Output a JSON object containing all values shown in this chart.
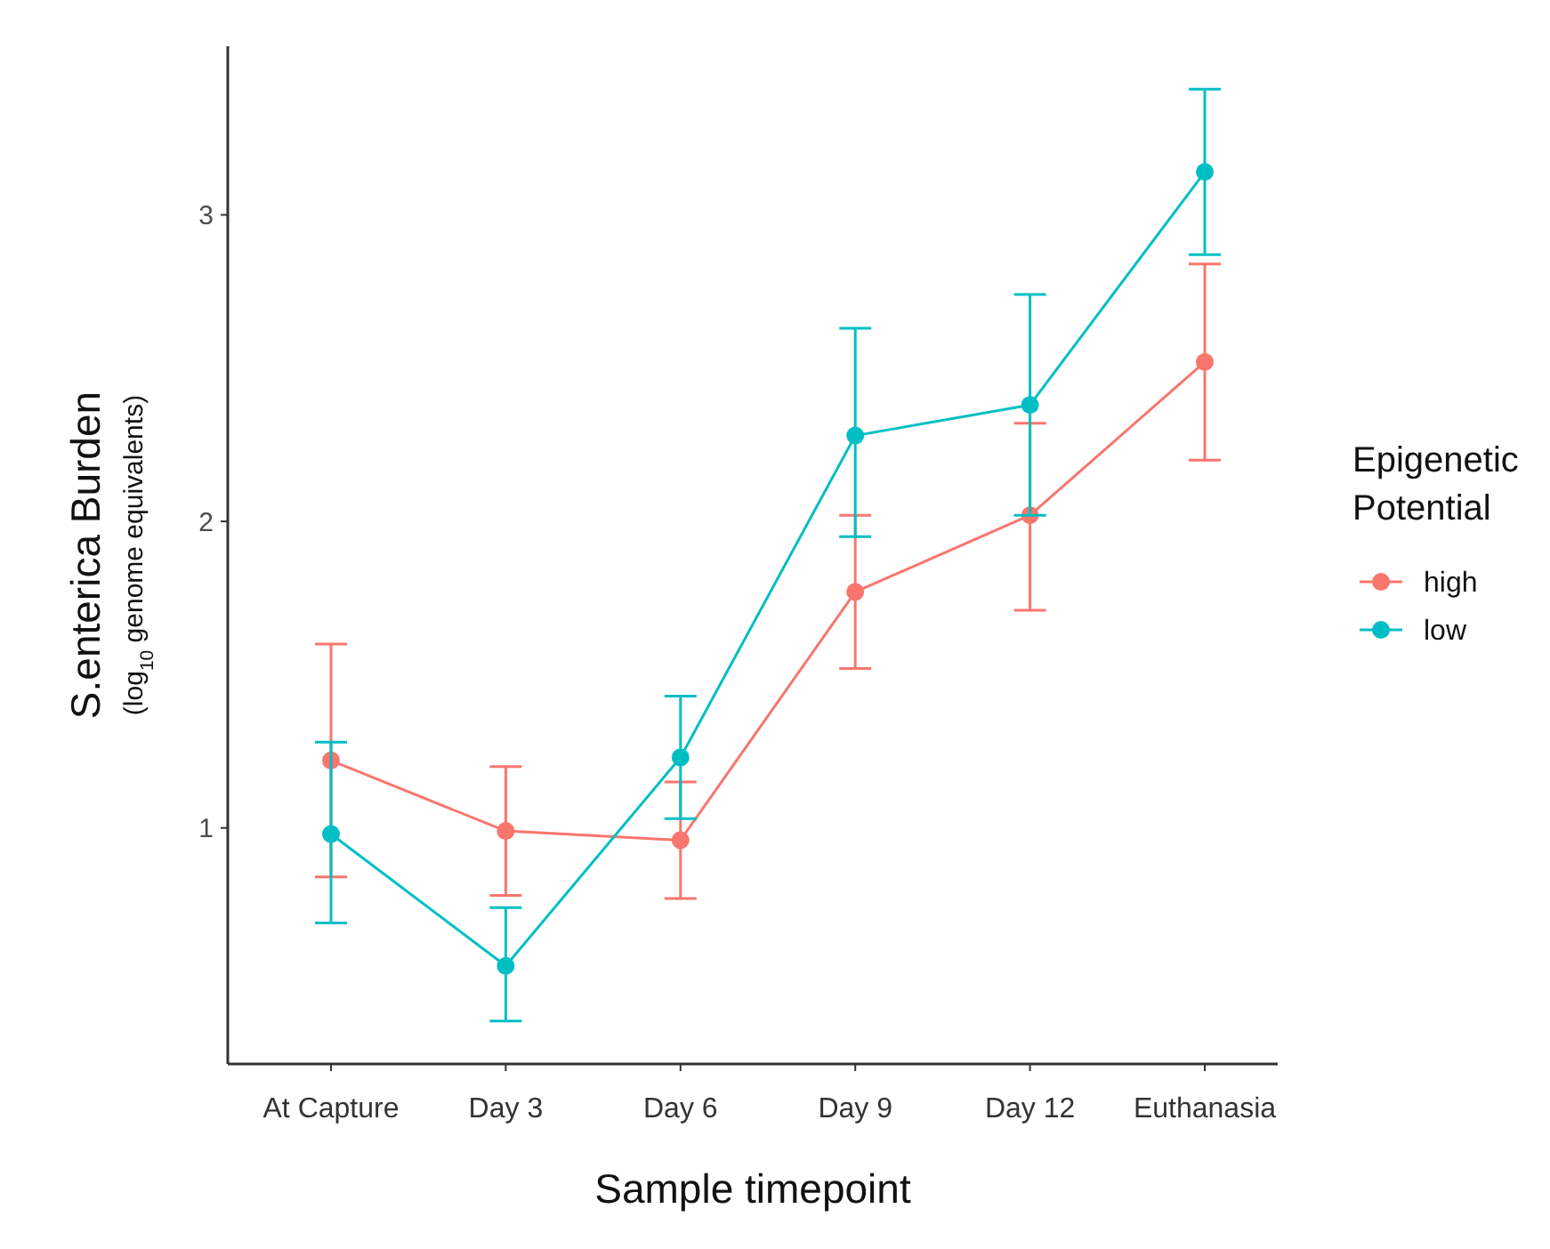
{
  "chart_data": {
    "type": "line",
    "xlabel": "Sample timepoint",
    "ylabel": "S.enterica Burden\n(log$_{10}$ genome equivalents)",
    "legend_title": "Epigenetic\nPotential",
    "categories": [
      "At Capture",
      "Day 3",
      "Day 6",
      "Day 9",
      "Day 12",
      "Euthanasia"
    ],
    "ylim": [
      0.23,
      3.55
    ],
    "yticks": [
      1,
      2,
      3
    ],
    "grid": false,
    "legend": "right",
    "marker": "circle",
    "line_style": "solid",
    "series": [
      {
        "name": "high",
        "color": "#f8766d",
        "values": [
          1.22,
          0.99,
          0.96,
          1.77,
          2.02,
          2.52
        ],
        "errors": [
          [
            0.84,
            1.6
          ],
          [
            0.78,
            1.2
          ],
          [
            0.77,
            1.15
          ],
          [
            1.52,
            2.02
          ],
          [
            1.71,
            2.32
          ],
          [
            2.2,
            2.84
          ]
        ]
      },
      {
        "name": "low",
        "color": "#00bfc4",
        "values": [
          0.98,
          0.55,
          1.23,
          2.28,
          2.38,
          3.14
        ],
        "errors": [
          [
            0.69,
            1.28
          ],
          [
            0.37,
            0.74
          ],
          [
            1.03,
            1.43
          ],
          [
            1.95,
            2.63
          ],
          [
            2.02,
            2.74
          ],
          [
            2.87,
            3.41
          ]
        ]
      }
    ]
  }
}
